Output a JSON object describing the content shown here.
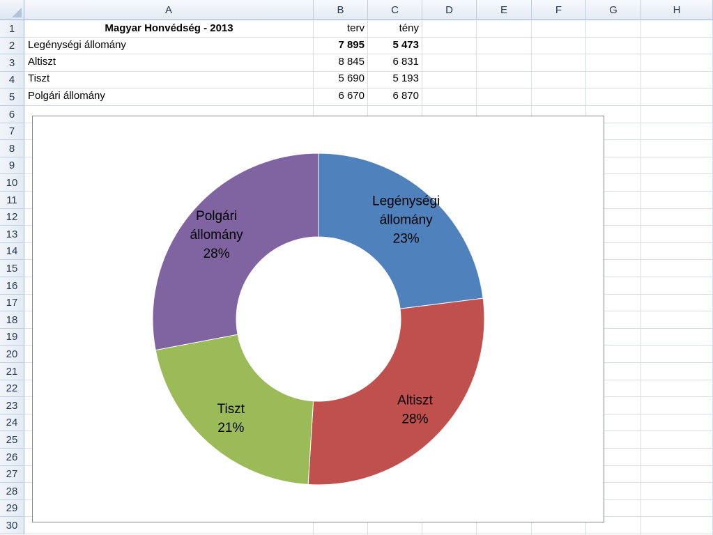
{
  "columns": [
    "A",
    "B",
    "C",
    "D",
    "E",
    "F",
    "G",
    "H"
  ],
  "rows": [
    "1",
    "2",
    "3",
    "4",
    "5",
    "6",
    "7",
    "8",
    "9",
    "10",
    "11",
    "12",
    "13",
    "14",
    "15",
    "16",
    "17",
    "18",
    "19",
    "20",
    "21",
    "22",
    "23",
    "24",
    "25",
    "26",
    "27",
    "28",
    "29",
    "30"
  ],
  "sheet": {
    "title": "Magyar Honvédség - 2013",
    "header_b": "terv",
    "header_c": "tény",
    "data": [
      {
        "label": "Legénységi állomány",
        "terv": "7 895",
        "teny": "5 473"
      },
      {
        "label": "Altiszt",
        "terv": "8 845",
        "teny": "6 831"
      },
      {
        "label": "Tiszt",
        "terv": "5 690",
        "teny": "5 193"
      },
      {
        "label": "Polgári állomány",
        "terv": "6 670",
        "teny": "6 870"
      }
    ]
  },
  "chart_data": {
    "type": "pie",
    "variant": "doughnut",
    "series": [
      {
        "name": "Legénységi állomány",
        "value": 23,
        "color": "#4f81bd",
        "label_lines": [
          "Legénységi",
          "állomány",
          "23%"
        ]
      },
      {
        "name": "Altiszt",
        "value": 28,
        "color": "#c0504d",
        "label_lines": [
          "Altiszt",
          "28%"
        ]
      },
      {
        "name": "Tiszt",
        "value": 21,
        "color": "#9bbb59",
        "label_lines": [
          "Tiszt",
          "21%"
        ]
      },
      {
        "name": "Polgári állomány",
        "value": 28,
        "color": "#8064a2",
        "label_lines": [
          "Polgári",
          "állomány",
          "28%"
        ]
      }
    ],
    "legend": "none"
  }
}
